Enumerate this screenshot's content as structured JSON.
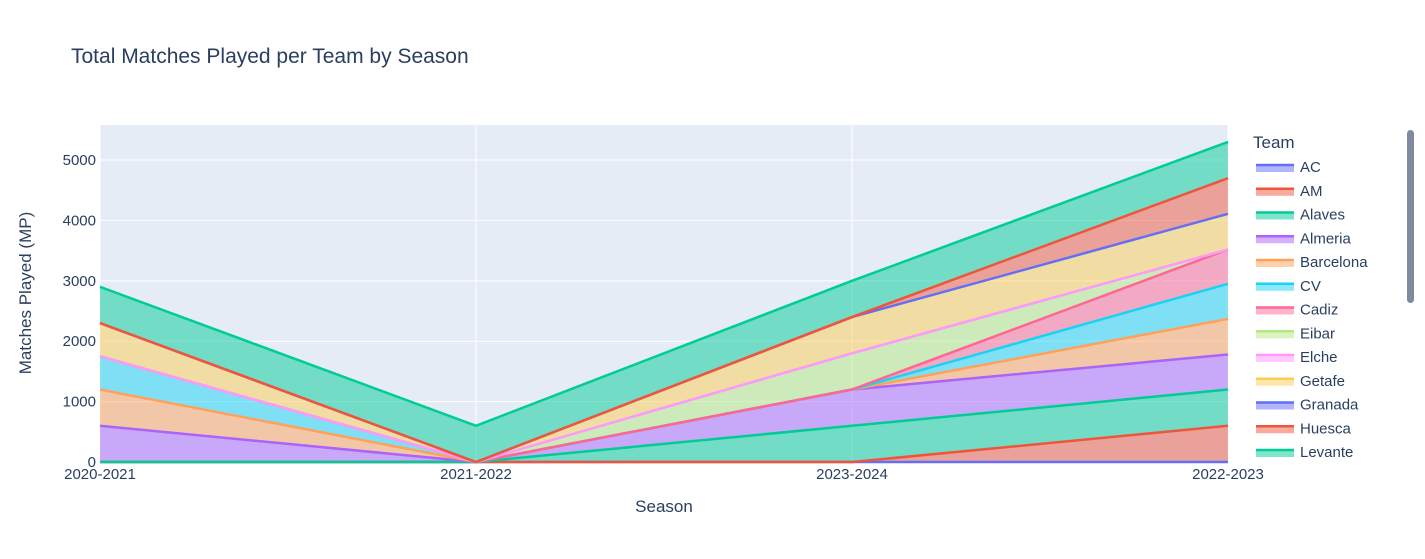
{
  "chart_data": {
    "type": "area",
    "stacked": true,
    "title": "Total Matches Played per Team by Season",
    "xlabel": "Season",
    "ylabel": "Matches Played (MP)",
    "legend_title": "Team",
    "legend_placement": "right",
    "grid": true,
    "ylim": [
      0,
      5580
    ],
    "yticks": [
      0,
      1000,
      2000,
      3000,
      4000,
      5000
    ],
    "categories": [
      "2020-2021",
      "2021-2022",
      "2023-2024",
      "2022-2023"
    ],
    "series": [
      {
        "name": "AC",
        "color": "#636efa",
        "values": [
          0,
          0,
          0,
          0
        ]
      },
      {
        "name": "AM",
        "color": "#EF553B",
        "values": [
          0,
          0,
          0,
          600
        ]
      },
      {
        "name": "Alaves",
        "color": "#00cc96",
        "values": [
          0,
          0,
          600,
          600
        ]
      },
      {
        "name": "Almeria",
        "color": "#ab63fa",
        "values": [
          600,
          0,
          600,
          580
        ]
      },
      {
        "name": "Barcelona",
        "color": "#FFA15A",
        "values": [
          600,
          0,
          0,
          590
        ]
      },
      {
        "name": "CV",
        "color": "#19d3f3",
        "values": [
          550,
          0,
          0,
          580
        ]
      },
      {
        "name": "Cadiz",
        "color": "#FF6692",
        "values": [
          0,
          0,
          0,
          570
        ]
      },
      {
        "name": "Eibar",
        "color": "#B6E880",
        "values": [
          0,
          0,
          600,
          0
        ]
      },
      {
        "name": "Elche",
        "color": "#FF97FF",
        "values": [
          0,
          0,
          0,
          0
        ]
      },
      {
        "name": "Getafe",
        "color": "#FECB52",
        "values": [
          550,
          0,
          600,
          590
        ]
      },
      {
        "name": "Granada",
        "color": "#636efa",
        "values": [
          0,
          0,
          0,
          0
        ]
      },
      {
        "name": "Huesca",
        "color": "#EF553B",
        "values": [
          0,
          0,
          0,
          590
        ]
      },
      {
        "name": "Levante",
        "color": "#00cc96",
        "values": [
          600,
          600,
          600,
          600
        ]
      }
    ]
  }
}
